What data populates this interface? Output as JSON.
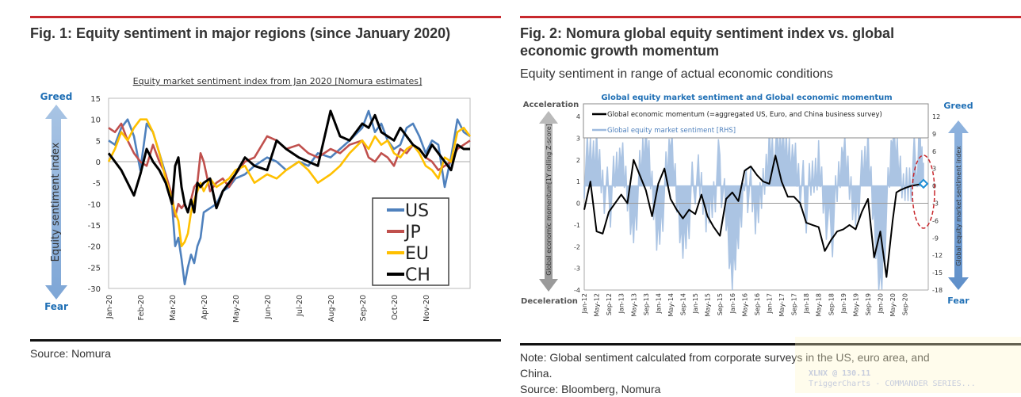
{
  "fig1": {
    "title": "Fig. 1: Equity sentiment in major regions (since January 2020)",
    "source": "Source: Nomura",
    "greed_label": "Greed",
    "fear_label": "Fear",
    "arrow_label": "Equity sentiment index"
  },
  "fig2": {
    "title_line1": "Fig. 2: Nomura global equity sentiment index vs. global",
    "title_line2": "economic growth momentum",
    "subtitle": "Equity sentiment in range of actual economic conditions",
    "acceleration_label": "Acceleration",
    "deceleration_label": "Deceleration",
    "greed_label": "Greed",
    "fear_label": "Fear",
    "left_arrow_label": "Global economic momentum[1Y rolling Z-score]",
    "right_arrow_label": "Global equity market sentiment index",
    "note_line1": "Note: Global sentiment calculated from corporate surveys in the US, euro area, and",
    "note_line2": "China.",
    "source": "Source: Bloomberg, Nomura"
  },
  "watermark": {
    "line1": "XLNX @ 130.11",
    "line2": "TriggerCharts - COMMANDER SERIES..."
  },
  "colors": {
    "US": "#4f81bd",
    "JP": "#c0504d",
    "EU": "#ffc000",
    "CH": "#000000",
    "sentiment_fill": "#9dbadf",
    "accent_blue": "#1f6fb5",
    "rule_red": "#c8282d"
  },
  "chart_data": [
    {
      "type": "line",
      "title": "Equity market sentiment index from Jan 2020 [Nomura estimates]",
      "xlabel": "",
      "ylabel": "Equity sentiment index",
      "ylim": [
        -30,
        15
      ],
      "yticks": [
        15,
        10,
        5,
        0,
        -5,
        -10,
        -15,
        -20,
        -25,
        -30
      ],
      "x_tick_labels": [
        "Jan-20",
        "Feb-20",
        "Mar-20",
        "Apr-20",
        "May-20",
        "Jun-20",
        "Jul-20",
        "Aug-20",
        "Sep-20",
        "Oct-20",
        "Nov-20"
      ],
      "x_months": [
        0,
        11.4
      ],
      "legend_position": "bottom-right",
      "series": [
        {
          "name": "US",
          "x": [
            0,
            0.2,
            0.4,
            0.6,
            0.8,
            1.0,
            1.2,
            1.4,
            1.6,
            1.8,
            2.0,
            2.1,
            2.2,
            2.3,
            2.4,
            2.5,
            2.6,
            2.7,
            2.8,
            2.9,
            3.0,
            3.2,
            3.4,
            3.6,
            3.8,
            4.0,
            4.3,
            4.6,
            5.0,
            5.3,
            5.6,
            6.0,
            6.3,
            6.6,
            7.0,
            7.3,
            7.6,
            8.0,
            8.2,
            8.4,
            8.6,
            8.8,
            9.0,
            9.2,
            9.4,
            9.6,
            9.8,
            10.0,
            10.2,
            10.4,
            10.6,
            10.8,
            11.0,
            11.2,
            11.4
          ],
          "values": [
            5,
            4,
            8,
            10,
            6,
            -2,
            9,
            7,
            2,
            -3,
            -10,
            -20,
            -18,
            -23,
            -29,
            -25,
            -22,
            -24,
            -20,
            -18,
            -12,
            -11,
            -10,
            -7,
            -6,
            -4,
            -3,
            -1,
            1,
            0,
            -2,
            0,
            -1,
            2,
            1,
            3,
            5,
            8,
            12,
            7,
            9,
            5,
            3,
            4,
            8,
            9,
            6,
            2,
            5,
            4,
            -6,
            1,
            10,
            7,
            6
          ]
        },
        {
          "name": "JP",
          "x": [
            0,
            0.2,
            0.4,
            0.6,
            0.8,
            1.0,
            1.2,
            1.4,
            1.6,
            1.8,
            2.0,
            2.1,
            2.2,
            2.3,
            2.4,
            2.5,
            2.6,
            2.7,
            2.8,
            2.9,
            3.0,
            3.2,
            3.4,
            3.6,
            3.8,
            4.0,
            4.3,
            4.6,
            5.0,
            5.3,
            5.6,
            6.0,
            6.3,
            6.6,
            7.0,
            7.3,
            7.6,
            8.0,
            8.2,
            8.4,
            8.6,
            8.8,
            9.0,
            9.2,
            9.4,
            9.6,
            9.8,
            10.0,
            10.2,
            10.4,
            10.6,
            10.8,
            11.0,
            11.2,
            11.4
          ],
          "values": [
            8,
            7,
            9,
            5,
            2,
            0,
            -1,
            4,
            0,
            -3,
            -8,
            -13,
            -10,
            -11,
            -10,
            -12,
            -9,
            -6,
            -5,
            2,
            0,
            -7,
            -5,
            -4,
            -6,
            -3,
            0,
            1,
            6,
            5,
            3,
            4,
            2,
            1,
            3,
            2,
            4,
            5,
            1,
            0,
            2,
            1,
            -1,
            3,
            2,
            4,
            3,
            1,
            0,
            -2,
            -1,
            0,
            3,
            4,
            5
          ]
        },
        {
          "name": "EU",
          "x": [
            0,
            0.2,
            0.4,
            0.6,
            0.8,
            1.0,
            1.2,
            1.4,
            1.6,
            1.8,
            2.0,
            2.1,
            2.2,
            2.3,
            2.4,
            2.5,
            2.6,
            2.7,
            2.8,
            2.9,
            3.0,
            3.2,
            3.4,
            3.6,
            3.8,
            4.0,
            4.3,
            4.6,
            5.0,
            5.3,
            5.6,
            6.0,
            6.3,
            6.6,
            7.0,
            7.3,
            7.6,
            8.0,
            8.2,
            8.4,
            8.6,
            8.8,
            9.0,
            9.2,
            9.4,
            9.6,
            9.8,
            10.0,
            10.2,
            10.4,
            10.6,
            10.8,
            11.0,
            11.2,
            11.4
          ],
          "values": [
            0,
            3,
            7,
            5,
            8,
            10,
            10,
            7,
            2,
            -4,
            -9,
            -12,
            -14,
            -20,
            -19,
            -17,
            -12,
            -9,
            -7,
            -5,
            -7,
            -4,
            -6,
            -5,
            -4,
            -2,
            -1,
            -5,
            -3,
            -4,
            -2,
            0,
            -2,
            -5,
            -3,
            -1,
            2,
            5,
            3,
            6,
            4,
            5,
            2,
            1,
            3,
            4,
            2,
            -1,
            -2,
            -4,
            1,
            0,
            7,
            8,
            6
          ]
        },
        {
          "name": "CH",
          "x": [
            0,
            0.2,
            0.4,
            0.6,
            0.8,
            1.0,
            1.2,
            1.4,
            1.6,
            1.8,
            2.0,
            2.1,
            2.2,
            2.3,
            2.4,
            2.5,
            2.6,
            2.7,
            2.8,
            2.9,
            3.0,
            3.2,
            3.4,
            3.6,
            3.8,
            4.0,
            4.3,
            4.6,
            5.0,
            5.3,
            5.6,
            6.0,
            6.3,
            6.6,
            7.0,
            7.3,
            7.6,
            8.0,
            8.2,
            8.4,
            8.6,
            8.8,
            9.0,
            9.2,
            9.4,
            9.6,
            9.8,
            10.0,
            10.2,
            10.4,
            10.6,
            10.8,
            11.0,
            11.2,
            11.4
          ],
          "values": [
            2,
            0,
            -2,
            -5,
            -8,
            -3,
            3,
            0,
            -2,
            -5,
            -10,
            -1,
            1,
            -6,
            -10,
            -12,
            -9,
            -12,
            -5,
            -6,
            -5,
            -4,
            -11,
            -7,
            -5,
            -3,
            1,
            -1,
            -2,
            5,
            3,
            1,
            0,
            -1,
            12,
            6,
            5,
            9,
            8,
            11,
            7,
            6,
            5,
            8,
            6,
            4,
            3,
            1,
            4,
            2,
            0,
            -2,
            4,
            3,
            3
          ]
        }
      ]
    },
    {
      "type": "line",
      "title": "Global equity market sentiment and Global economic momentum",
      "ylabel_left": "Global economic momentum[1Y rolling Z-score]",
      "ylabel_right": "Global equity market sentiment index",
      "ylim_left": [
        -4,
        4
      ],
      "ylim_right": [
        -18,
        12
      ],
      "yticks_left": [
        4,
        3,
        2,
        1,
        0,
        -1,
        -2,
        -3,
        -4
      ],
      "yticks_right": [
        12,
        9,
        6,
        3,
        0,
        -3,
        -6,
        -9,
        -12,
        -15,
        -18
      ],
      "x_tick_labels": [
        "Jan-12",
        "May-12",
        "Sep-12",
        "Jan-13",
        "May-13",
        "Sep-13",
        "Jan-14",
        "May-14",
        "Sep-14",
        "Jan-15",
        "May-15",
        "Sep-15",
        "Jan-16",
        "May-16",
        "Sep-16",
        "Jan-17",
        "May-17",
        "Sep-17",
        "Jan-18",
        "May-18",
        "Sep-18",
        "Jan-19",
        "May-19",
        "Sep-19",
        "Jan-20",
        "May-20",
        "Sep-20"
      ],
      "legend_position": "top",
      "annotation": "red dashed ellipse highlighting latest values; blue diamond marks latest momentum",
      "series": [
        {
          "name": "Global economic momentum (=aggregated US, Euro, and China business survey)",
          "axis": "left",
          "x": [
            0,
            0.5,
            1,
            1.5,
            2,
            2.5,
            3,
            3.5,
            4,
            4.5,
            5,
            5.5,
            6,
            6.5,
            7,
            7.5,
            8,
            8.5,
            9,
            9.5,
            10,
            10.5,
            11,
            11.5,
            12,
            12.5,
            13,
            13.5,
            14,
            14.5,
            15,
            15.5,
            16,
            16.5,
            17,
            17.5,
            18,
            18.5,
            19,
            19.5,
            20,
            20.5,
            21,
            21.5,
            22,
            22.5,
            23,
            23.5,
            24,
            24.5,
            25,
            25.3,
            25.6,
            26,
            26.5,
            27,
            27.5
          ],
          "values": [
            -0.3,
            1,
            -1.3,
            -1.4,
            -0.4,
            0,
            0.4,
            0,
            2,
            1.3,
            0.6,
            -0.6,
            0.9,
            1.6,
            0.2,
            -0.3,
            -0.7,
            -0.3,
            -0.5,
            0.4,
            -0.6,
            -1.1,
            -1.5,
            0.2,
            0.5,
            0.1,
            1.5,
            1.7,
            1.3,
            1.0,
            0.9,
            2.2,
            1.0,
            0.3,
            0.3,
            0.0,
            -0.9,
            -1.0,
            -1.1,
            -2.2,
            -1.7,
            -1.3,
            -1.2,
            -1.0,
            -1.2,
            -0.4,
            0.2,
            -2.5,
            -1.3,
            -3.4,
            -0.8,
            0.5,
            0.6,
            0.7,
            0.8,
            0.85,
            0.9
          ]
        },
        {
          "name": "Global equity market sentiment [RHS]",
          "axis": "right",
          "x": [
            0,
            1,
            2,
            3,
            4,
            5,
            6,
            7,
            8,
            9,
            10,
            11,
            12,
            13,
            14,
            15,
            16,
            17,
            18,
            19,
            20,
            21,
            22,
            23,
            24,
            25,
            26,
            27,
            27.5
          ],
          "values": [
            3,
            6,
            -3,
            5,
            -6,
            8,
            -8,
            6,
            -10,
            2,
            -5,
            4,
            -17,
            3,
            -7,
            8,
            5,
            6,
            -3,
            4,
            -9,
            6,
            -3,
            5,
            -17,
            7,
            0,
            5,
            4
          ]
        }
      ]
    }
  ]
}
